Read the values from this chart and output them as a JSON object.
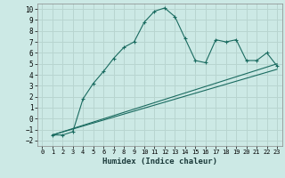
{
  "xlabel": "Humidex (Indice chaleur)",
  "ylabel": "",
  "background_color": "#cce9e5",
  "grid_color": "#b8d5d0",
  "line_color": "#1a6b60",
  "xlim": [
    -0.5,
    23.5
  ],
  "ylim": [
    -2.5,
    10.5
  ],
  "xticks": [
    0,
    1,
    2,
    3,
    4,
    5,
    6,
    7,
    8,
    9,
    10,
    11,
    12,
    13,
    14,
    15,
    16,
    17,
    18,
    19,
    20,
    21,
    22,
    23
  ],
  "yticks": [
    -2,
    -1,
    0,
    1,
    2,
    3,
    4,
    5,
    6,
    7,
    8,
    9,
    10
  ],
  "curve1_x": [
    1,
    2,
    3,
    4,
    5,
    6,
    7,
    8,
    9,
    10,
    11,
    12,
    13,
    14,
    15,
    16,
    17,
    18,
    19,
    20,
    21,
    22,
    23
  ],
  "curve1_y": [
    -1.5,
    -1.5,
    -1.2,
    1.8,
    3.2,
    4.3,
    5.5,
    6.5,
    7.0,
    8.8,
    9.8,
    10.1,
    9.3,
    7.3,
    5.3,
    5.1,
    7.2,
    7.0,
    7.2,
    5.3,
    5.3,
    6.0,
    4.8
  ],
  "curve2_x": [
    1,
    23
  ],
  "curve2_y": [
    -1.5,
    5.0
  ],
  "curve3_x": [
    1,
    23
  ],
  "curve3_y": [
    -1.5,
    4.5
  ]
}
